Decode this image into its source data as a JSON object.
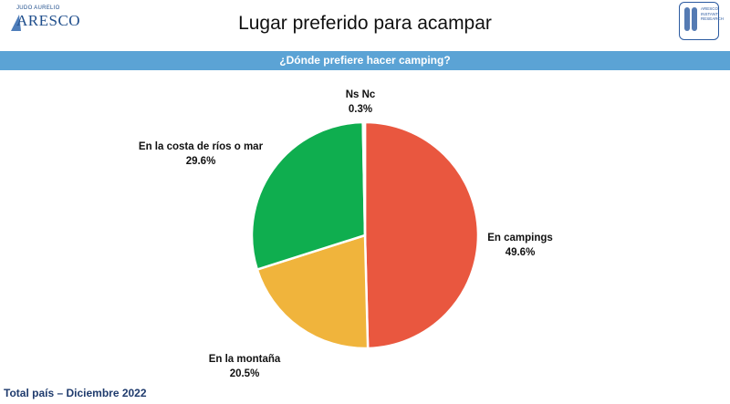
{
  "header": {
    "logo_left_small": "JUDO AURELIO",
    "logo_left_big": "ARESCO",
    "logo_right_lines": [
      "ARESCO",
      "INSTANT",
      "RESEARCH"
    ]
  },
  "footer": {
    "text": "Total país – Diciembre 2022"
  },
  "chart_data": {
    "type": "pie",
    "title": "Lugar preferido para acampar",
    "subtitle": "¿Dónde prefiere hacer camping?",
    "slices": [
      {
        "label": "En campings",
        "value": 49.6,
        "display": "49.6%",
        "color": "#e9573f"
      },
      {
        "label": "En la montaña",
        "value": 20.5,
        "display": "20.5%",
        "color": "#f0b43c"
      },
      {
        "label": "En la costa de ríos o mar",
        "value": 29.6,
        "display": "29.6%",
        "color": "#0fae4f"
      },
      {
        "label": "Ns Nc",
        "value": 0.3,
        "display": "0.3%",
        "color": "#c9c9c9"
      }
    ]
  }
}
